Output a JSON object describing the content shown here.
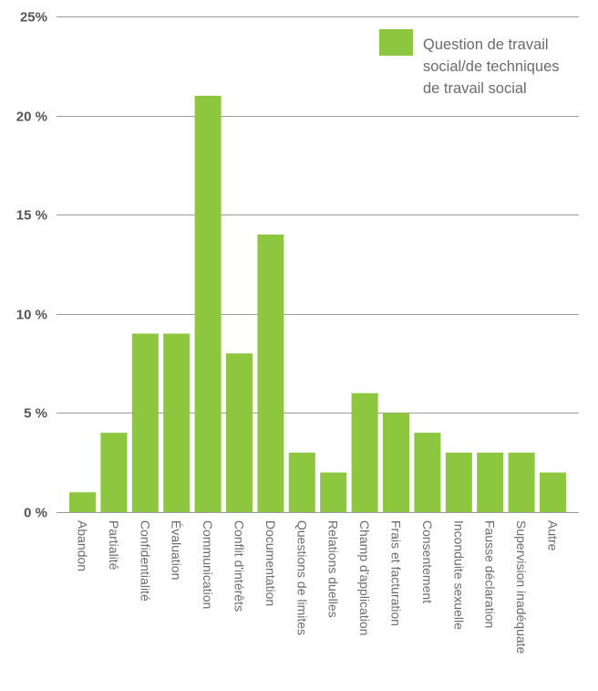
{
  "chart_data": {
    "type": "bar",
    "categories": [
      "Abandon",
      "Partialité",
      "Confidentialité",
      "Évaluation",
      "Communication",
      "Conflit d'intérêts",
      "Documentation",
      "Questions de limites",
      "Relations duelles",
      "Champ d'application",
      "Frais et facturation",
      "Consentement",
      "Inconduite sexuelle",
      "Fausse déclaration",
      "Supervision inadéquate",
      "Autre"
    ],
    "series": [
      {
        "name": "Question de travail social/de techniques de travail social",
        "name_lines": [
          "Question de travail",
          "social/de techniques",
          "de travail social"
        ],
        "values": [
          1,
          4,
          9,
          9,
          21,
          8,
          14,
          3,
          2,
          6,
          5,
          4,
          3,
          3,
          3,
          2
        ],
        "color": "#8dc63f"
      }
    ],
    "ylim": [
      0,
      25
    ],
    "ytick_values": [
      0,
      5,
      10,
      15,
      20,
      25
    ],
    "ytick_labels": [
      "0 %",
      "5 %",
      "10 %",
      "15 %",
      "20 %",
      "25%"
    ],
    "grid": true,
    "grid_color": "#9a9a9a",
    "legend_position": "top-right",
    "title": "",
    "xlabel": "",
    "ylabel": ""
  }
}
